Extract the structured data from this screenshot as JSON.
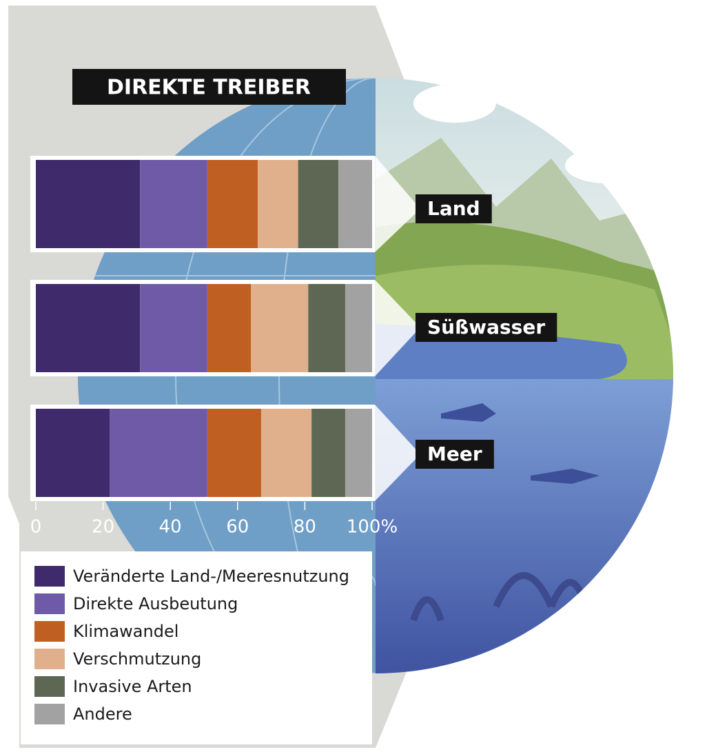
{
  "chart_data": {
    "type": "bar",
    "orientation": "horizontal",
    "stacked": true,
    "title": "DIREKTE TREIBER",
    "categories": [
      "Land",
      "Süßwasser",
      "Meer"
    ],
    "series": [
      {
        "name": "Veränderte Land-/Meeresnutzung",
        "color": "#3f2a6b",
        "values": [
          31,
          31,
          22
        ]
      },
      {
        "name": "Direkte Ausbeutung",
        "color": "#6f5aa8",
        "values": [
          20,
          20,
          29
        ]
      },
      {
        "name": "Klimawandel",
        "color": "#c05f22",
        "values": [
          15,
          13,
          16
        ]
      },
      {
        "name": "Verschmutzung",
        "color": "#e0b08c",
        "values": [
          12,
          17,
          15
        ]
      },
      {
        "name": "Invasive Arten",
        "color": "#5e6753",
        "values": [
          12,
          11,
          10
        ]
      },
      {
        "name": "Andere",
        "color": "#a2a2a2",
        "values": [
          10,
          8,
          8
        ]
      }
    ],
    "xlim": [
      0,
      100
    ],
    "xticks": [
      0,
      20,
      40,
      60,
      80,
      {
        "value": 100,
        "label": "100%"
      }
    ]
  }
}
